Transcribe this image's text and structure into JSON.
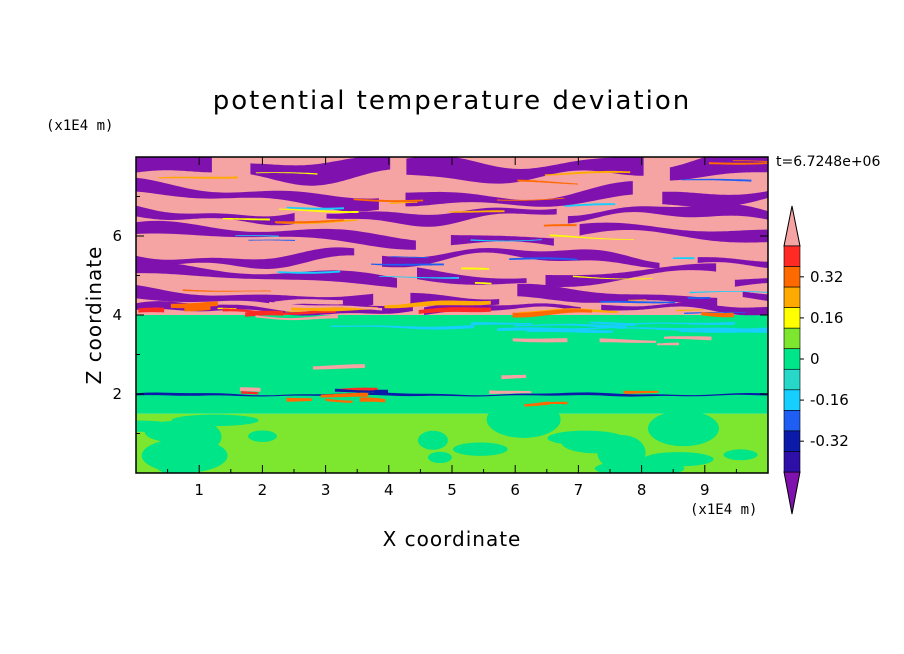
{
  "chart_data": {
    "type": "heatmap",
    "title": "potential temperature deviation",
    "xlabel": "X coordinate",
    "ylabel": "Z coordinate",
    "x_unit": "(x1E4 m)",
    "y_unit": "(x1E4 m)",
    "time_label": "t=6.7248e+06",
    "xlim": [
      0,
      10
    ],
    "ylim": [
      0,
      8
    ],
    "x_ticks": [
      "1",
      "2",
      "3",
      "4",
      "5",
      "6",
      "7",
      "8",
      "9"
    ],
    "y_ticks": [
      "2",
      "4",
      "6"
    ],
    "colorbar": {
      "levels": [
        -0.48,
        -0.4,
        -0.32,
        -0.24,
        -0.16,
        -0.08,
        0,
        0.08,
        0.16,
        0.24,
        0.32,
        0.4,
        0.48
      ],
      "labels": [
        "0.32",
        "0.16",
        "0",
        "-0.16",
        "-0.32"
      ],
      "colors": [
        "#7f11ae",
        "#2e10a8",
        "#0b1aa8",
        "#1f5ef2",
        "#17cfff",
        "#27d7c8",
        "#00e587",
        "#7de62e",
        "#ffff00",
        "#ffaa00",
        "#ff6a00",
        "#ff2a24",
        "#f5a3a3"
      ]
    },
    "layers": [
      {
        "z_from": 0,
        "z_to": 1.5,
        "dominant": "green-yellow mix (~0 to 0.08)"
      },
      {
        "z_from": 1.5,
        "z_to": 4.0,
        "dominant": "green (~0)"
      },
      {
        "z_from": 4.0,
        "z_to": 8.0,
        "dominant": "alternating pink (>0.4) and purple (<-0.4) bands"
      }
    ]
  }
}
